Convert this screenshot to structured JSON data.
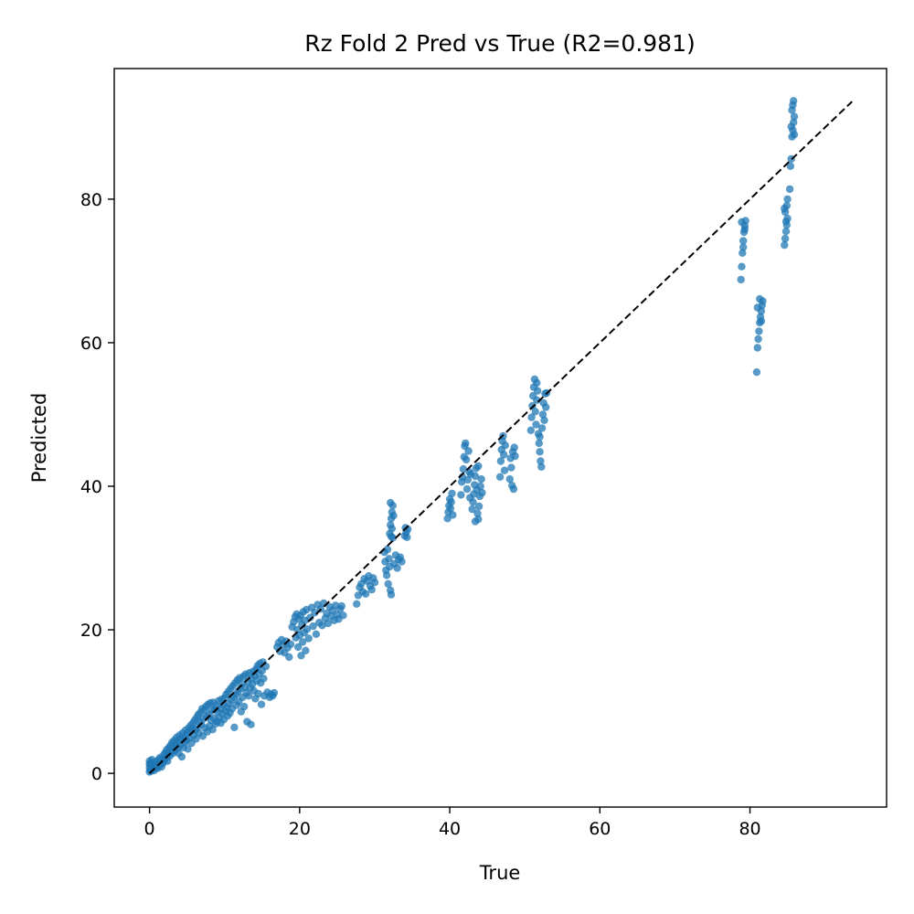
{
  "chart_data": {
    "type": "scatter",
    "title": "Rz Fold 2 Pred vs True (R2=0.981)",
    "xlabel": "True",
    "ylabel": "Predicted",
    "xlim": [
      -4.7,
      98.2
    ],
    "ylim": [
      -4.7,
      98.2
    ],
    "xticks": [
      0,
      20,
      40,
      60,
      80
    ],
    "yticks": [
      0,
      20,
      40,
      60,
      80
    ],
    "grid": false,
    "legend": "none",
    "point_color": "#1f77b4",
    "reference_line": {
      "style": "dashed",
      "color": "#000000",
      "from": [
        0,
        0
      ],
      "to": [
        93.6,
        93.6
      ]
    },
    "points": [
      [
        0,
        0.2
      ],
      [
        0,
        0.8
      ],
      [
        0,
        1.3
      ],
      [
        0,
        1.7
      ],
      [
        0.1,
        0.5
      ],
      [
        0.1,
        1.1
      ],
      [
        0.2,
        0.3
      ],
      [
        0.2,
        1.5
      ],
      [
        0.3,
        0.9
      ],
      [
        0.3,
        1.9
      ],
      [
        0.4,
        0.6
      ],
      [
        0.5,
        1.2
      ],
      [
        0.6,
        0.4
      ],
      [
        0.7,
        1.0
      ],
      [
        0.8,
        1.6
      ],
      [
        0.9,
        0.8
      ],
      [
        1.0,
        1.3
      ],
      [
        1.1,
        0.7
      ],
      [
        1.2,
        1.9
      ],
      [
        1.3,
        1.1
      ],
      [
        1.4,
        2.2
      ],
      [
        1.5,
        1.5
      ],
      [
        1.6,
        0.9
      ],
      [
        1.7,
        2.0
      ],
      [
        1.8,
        1.4
      ],
      [
        1.9,
        2.6
      ],
      [
        2.0,
        1.8
      ],
      [
        2.1,
        2.9
      ],
      [
        2.2,
        2.2
      ],
      [
        2.3,
        3.3
      ],
      [
        2.4,
        1.7
      ],
      [
        2.5,
        2.6
      ],
      [
        2.6,
        3.6
      ],
      [
        2.7,
        2.4
      ],
      [
        2.8,
        3.9
      ],
      [
        2.9,
        3.0
      ],
      [
        3.0,
        4.3
      ],
      [
        3.1,
        2.8
      ],
      [
        3.2,
        3.6
      ],
      [
        3.3,
        4.6
      ],
      [
        3.4,
        3.2
      ],
      [
        3.5,
        4.1
      ],
      [
        3.6,
        5.0
      ],
      [
        3.7,
        3.5
      ],
      [
        3.8,
        4.4
      ],
      [
        3.9,
        2.8
      ],
      [
        4.0,
        5.3
      ],
      [
        4.1,
        3.9
      ],
      [
        4.2,
        4.8
      ],
      [
        4.3,
        2.3
      ],
      [
        4.4,
        5.6
      ],
      [
        4.5,
        3.6
      ],
      [
        4.6,
        5.0
      ],
      [
        4.7,
        4.3
      ],
      [
        4.8,
        6.0
      ],
      [
        4.9,
        4.6
      ],
      [
        5.0,
        5.5
      ],
      [
        5.1,
        3.4
      ],
      [
        5.2,
        6.3
      ],
      [
        5.3,
        4.9
      ],
      [
        5.4,
        5.8
      ],
      [
        5.5,
        6.7
      ],
      [
        5.6,
        4.2
      ],
      [
        5.7,
        6.1
      ],
      [
        5.8,
        7.0
      ],
      [
        5.9,
        5.3
      ],
      [
        6.0,
        7.4
      ],
      [
        6.1,
        6.0
      ],
      [
        6.2,
        4.8
      ],
      [
        6.3,
        7.8
      ],
      [
        6.4,
        6.4
      ],
      [
        6.5,
        8.2
      ],
      [
        6.6,
        5.6
      ],
      [
        6.7,
        7.2
      ],
      [
        6.8,
        8.5
      ],
      [
        6.9,
        6.8
      ],
      [
        7.0,
        9.0
      ],
      [
        7.1,
        5.2
      ],
      [
        7.2,
        7.6
      ],
      [
        7.3,
        8.8
      ],
      [
        7.4,
        6.3
      ],
      [
        7.5,
        9.3
      ],
      [
        7.6,
        7.9
      ],
      [
        7.7,
        5.8
      ],
      [
        7.8,
        9.6
      ],
      [
        7.9,
        8.2
      ],
      [
        8.0,
        6.6
      ],
      [
        8.1,
        9.8
      ],
      [
        8.2,
        7.4
      ],
      [
        8.3,
        8.8
      ],
      [
        8.4,
        6.1
      ],
      [
        8.5,
        9.9
      ],
      [
        8.6,
        7.7
      ],
      [
        8.7,
        8.9
      ],
      [
        8.8,
        6.9
      ],
      [
        8.9,
        9.4
      ],
      [
        9.0,
        7.2
      ],
      [
        9.1,
        8.6
      ],
      [
        9.2,
        10.1
      ],
      [
        9.3,
        7.8
      ],
      [
        9.4,
        9.0
      ],
      [
        9.5,
        7.0
      ],
      [
        9.6,
        10.3
      ],
      [
        9.7,
        8.3
      ],
      [
        9.8,
        9.6
      ],
      [
        9.9,
        7.5
      ],
      [
        10.0,
        10.5
      ],
      [
        10.1,
        8.7
      ],
      [
        10.2,
        11.0
      ],
      [
        10.3,
        9.2
      ],
      [
        10.4,
        8.0
      ],
      [
        10.5,
        11.4
      ],
      [
        10.6,
        9.7
      ],
      [
        10.7,
        8.4
      ],
      [
        10.8,
        11.8
      ],
      [
        10.9,
        10.2
      ],
      [
        11.0,
        9.0
      ],
      [
        11.1,
        12.2
      ],
      [
        11.2,
        10.6
      ],
      [
        11.3,
        6.4
      ],
      [
        11.4,
        12.6
      ],
      [
        11.5,
        11.0
      ],
      [
        11.6,
        9.5
      ],
      [
        11.7,
        13.0
      ],
      [
        11.8,
        11.4
      ],
      [
        11.9,
        10.0
      ],
      [
        12.0,
        13.3
      ],
      [
        12.1,
        11.8
      ],
      [
        12.2,
        8.6
      ],
      [
        12.3,
        12.5
      ],
      [
        12.4,
        10.6
      ],
      [
        12.5,
        13.5
      ],
      [
        12.6,
        9.3
      ],
      [
        12.7,
        12.0
      ],
      [
        12.8,
        13.8
      ],
      [
        12.9,
        11.2
      ],
      [
        13.0,
        7.2
      ],
      [
        13.1,
        12.8
      ],
      [
        13.2,
        10.8
      ],
      [
        13.3,
        14.0
      ],
      [
        13.4,
        11.9
      ],
      [
        13.5,
        6.8
      ],
      [
        13.6,
        13.2
      ],
      [
        13.7,
        12.4
      ],
      [
        13.8,
        14.2
      ],
      [
        13.9,
        11.5
      ],
      [
        14.0,
        13.6
      ],
      [
        14.1,
        10.4
      ],
      [
        14.2,
        14.5
      ],
      [
        14.3,
        12.9
      ],
      [
        14.4,
        15.0
      ],
      [
        14.5,
        11.1
      ],
      [
        14.6,
        13.8
      ],
      [
        14.7,
        15.3
      ],
      [
        14.8,
        12.6
      ],
      [
        14.9,
        9.6
      ],
      [
        15.0,
        14.3
      ],
      [
        15.1,
        15.5
      ],
      [
        15.2,
        13.2
      ],
      [
        15.3,
        10.8
      ],
      [
        15.5,
        14.9
      ],
      [
        15.7,
        11.3
      ],
      [
        16.0,
        10.6
      ],
      [
        16.2,
        11.0
      ],
      [
        16.4,
        10.8
      ],
      [
        16.6,
        11.2
      ],
      [
        17.0,
        17.6
      ],
      [
        17.2,
        18.2
      ],
      [
        17.4,
        17.0
      ],
      [
        17.6,
        18.6
      ],
      [
        17.8,
        17.9
      ],
      [
        18.0,
        16.8
      ],
      [
        18.2,
        18.4
      ],
      [
        18.4,
        17.5
      ],
      [
        18.6,
        16.2
      ],
      [
        18.8,
        18.0
      ],
      [
        19.0,
        20.4
      ],
      [
        19.2,
        21.1
      ],
      [
        19.4,
        21.8
      ],
      [
        19.5,
        18.9
      ],
      [
        19.6,
        22.2
      ],
      [
        19.7,
        20.0
      ],
      [
        19.8,
        17.6
      ],
      [
        19.9,
        21.5
      ],
      [
        20.0,
        19.2
      ],
      [
        20.1,
        22.0
      ],
      [
        20.2,
        16.4
      ],
      [
        20.3,
        20.7
      ],
      [
        20.4,
        18.3
      ],
      [
        20.5,
        22.5
      ],
      [
        20.6,
        19.6
      ],
      [
        20.7,
        21.3
      ],
      [
        20.8,
        17.1
      ],
      [
        20.9,
        22.8
      ],
      [
        21.0,
        20.1
      ],
      [
        21.2,
        18.8
      ],
      [
        21.4,
        21.7
      ],
      [
        21.6,
        23.1
      ],
      [
        21.8,
        20.5
      ],
      [
        22.0,
        22.4
      ],
      [
        22.2,
        19.4
      ],
      [
        22.4,
        23.5
      ],
      [
        22.6,
        21.0
      ],
      [
        22.8,
        22.9
      ],
      [
        23.0,
        20.6
      ],
      [
        23.2,
        23.7
      ],
      [
        23.4,
        21.6
      ],
      [
        23.6,
        22.3
      ],
      [
        23.8,
        20.9
      ],
      [
        24.0,
        23.2
      ],
      [
        24.2,
        21.9
      ],
      [
        24.4,
        22.7
      ],
      [
        24.6,
        21.3
      ],
      [
        24.8,
        23.4
      ],
      [
        25.0,
        22.1
      ],
      [
        25.2,
        21.5
      ],
      [
        25.4,
        22.9
      ],
      [
        25.6,
        23.3
      ],
      [
        25.8,
        22.0
      ],
      [
        27.6,
        23.6
      ],
      [
        27.8,
        24.8
      ],
      [
        28.0,
        25.9
      ],
      [
        28.2,
        26.4
      ],
      [
        28.4,
        25.3
      ],
      [
        28.6,
        27.1
      ],
      [
        28.8,
        25.0
      ],
      [
        29.0,
        26.8
      ],
      [
        29.2,
        27.5
      ],
      [
        29.4,
        26.1
      ],
      [
        29.6,
        25.6
      ],
      [
        29.8,
        27.2
      ],
      [
        30.0,
        26.6
      ],
      [
        31.3,
        30.8
      ],
      [
        31.4,
        29.5
      ],
      [
        31.5,
        28.3
      ],
      [
        31.6,
        27.6
      ],
      [
        31.7,
        31.2
      ],
      [
        31.8,
        26.4
      ],
      [
        31.9,
        29.9
      ],
      [
        32.0,
        28.8
      ],
      [
        32.1,
        25.5
      ],
      [
        32.2,
        24.9
      ],
      [
        32.0,
        33.4
      ],
      [
        32.1,
        34.6
      ],
      [
        32.2,
        35.5
      ],
      [
        32.3,
        36.4
      ],
      [
        32.4,
        37.3
      ],
      [
        32.1,
        37.7
      ],
      [
        32.3,
        34.1
      ],
      [
        32.4,
        32.8
      ],
      [
        32.5,
        35.9
      ],
      [
        32.2,
        33.0
      ],
      [
        32.6,
        29.2
      ],
      [
        32.8,
        30.4
      ],
      [
        33.0,
        28.6
      ],
      [
        33.2,
        29.8
      ],
      [
        33.4,
        30.1
      ],
      [
        33.6,
        29.5
      ],
      [
        34.0,
        33.1
      ],
      [
        34.1,
        34.2
      ],
      [
        34.2,
        33.6
      ],
      [
        34.3,
        32.9
      ],
      [
        34.4,
        34.0
      ],
      [
        39.7,
        35.5
      ],
      [
        39.8,
        36.4
      ],
      [
        39.9,
        37.3
      ],
      [
        40.0,
        38.2
      ],
      [
        40.1,
        36.9
      ],
      [
        40.2,
        37.8
      ],
      [
        40.3,
        39.0
      ],
      [
        40.4,
        36.0
      ],
      [
        41.5,
        38.8
      ],
      [
        41.6,
        40.6
      ],
      [
        41.7,
        41.3
      ],
      [
        41.8,
        42.4
      ],
      [
        41.9,
        44.1
      ],
      [
        42.0,
        45.6
      ],
      [
        42.1,
        46.0
      ],
      [
        42.2,
        43.7
      ],
      [
        42.3,
        39.6
      ],
      [
        42.4,
        40.9
      ],
      [
        42.5,
        44.9
      ],
      [
        42.6,
        42.0
      ],
      [
        42.7,
        38.4
      ],
      [
        42.8,
        41.7
      ],
      [
        43.0,
        36.8
      ],
      [
        43.1,
        37.8
      ],
      [
        43.2,
        38.9
      ],
      [
        43.3,
        40.2
      ],
      [
        43.4,
        41.4
      ],
      [
        43.5,
        42.5
      ],
      [
        43.6,
        39.5
      ],
      [
        43.7,
        36.2
      ],
      [
        43.8,
        35.4
      ],
      [
        43.9,
        37.2
      ],
      [
        44.0,
        38.6
      ],
      [
        44.1,
        40.0
      ],
      [
        44.2,
        41.0
      ],
      [
        44.3,
        39.1
      ],
      [
        43.4,
        35.1
      ],
      [
        43.8,
        42.8
      ],
      [
        46.7,
        41.3
      ],
      [
        46.8,
        43.5
      ],
      [
        46.9,
        45.1
      ],
      [
        47.0,
        46.3
      ],
      [
        47.1,
        47.0
      ],
      [
        47.2,
        44.4
      ],
      [
        47.3,
        42.2
      ],
      [
        47.4,
        45.7
      ],
      [
        48.0,
        41.0
      ],
      [
        48.2,
        42.6
      ],
      [
        48.4,
        44.8
      ],
      [
        48.6,
        45.4
      ],
      [
        48.1,
        43.9
      ],
      [
        48.3,
        40.1
      ],
      [
        48.5,
        39.6
      ],
      [
        48.7,
        44.2
      ],
      [
        50.8,
        47.8
      ],
      [
        50.9,
        49.6
      ],
      [
        51.0,
        51.2
      ],
      [
        51.1,
        52.6
      ],
      [
        51.2,
        53.8
      ],
      [
        51.3,
        54.9
      ],
      [
        51.4,
        50.4
      ],
      [
        51.5,
        48.6
      ],
      [
        51.6,
        52.0
      ],
      [
        51.7,
        53.3
      ],
      [
        51.8,
        47.3
      ],
      [
        51.9,
        46.0
      ],
      [
        52.0,
        44.8
      ],
      [
        52.1,
        43.5
      ],
      [
        52.2,
        42.7
      ],
      [
        52.3,
        48.1
      ],
      [
        52.4,
        50.0
      ],
      [
        52.5,
        51.6
      ],
      [
        52.6,
        49.2
      ],
      [
        52.7,
        52.9
      ],
      [
        52.8,
        51.0
      ],
      [
        52.9,
        53.0
      ],
      [
        51.6,
        54.4
      ],
      [
        52.0,
        46.9
      ],
      [
        78.8,
        68.8
      ],
      [
        78.9,
        70.6
      ],
      [
        79.0,
        72.5
      ],
      [
        79.1,
        74.2
      ],
      [
        79.2,
        75.4
      ],
      [
        79.3,
        76.3
      ],
      [
        79.4,
        77.0
      ],
      [
        79.1,
        73.3
      ],
      [
        79.3,
        75.8
      ],
      [
        78.9,
        76.8
      ],
      [
        80.9,
        55.9
      ],
      [
        81.0,
        59.3
      ],
      [
        81.1,
        60.5
      ],
      [
        81.2,
        61.6
      ],
      [
        81.3,
        62.8
      ],
      [
        81.4,
        63.6
      ],
      [
        81.5,
        64.4
      ],
      [
        81.6,
        65.2
      ],
      [
        81.7,
        65.8
      ],
      [
        81.3,
        66.1
      ],
      [
        81.0,
        64.9
      ],
      [
        81.5,
        63.0
      ],
      [
        84.6,
        73.6
      ],
      [
        84.7,
        74.5
      ],
      [
        84.8,
        75.5
      ],
      [
        84.9,
        76.4
      ],
      [
        85.0,
        77.3
      ],
      [
        84.7,
        78.2
      ],
      [
        84.9,
        79.1
      ],
      [
        85.0,
        80.0
      ],
      [
        84.8,
        76.9
      ],
      [
        84.6,
        78.7
      ],
      [
        85.3,
        81.4
      ],
      [
        85.4,
        84.6
      ],
      [
        85.5,
        85.6
      ],
      [
        85.6,
        88.7
      ],
      [
        85.7,
        89.6
      ],
      [
        85.8,
        90.7
      ],
      [
        85.9,
        91.5
      ],
      [
        85.6,
        92.4
      ],
      [
        85.7,
        93.1
      ],
      [
        85.8,
        93.7
      ],
      [
        85.5,
        90.1
      ],
      [
        85.9,
        89.0
      ]
    ]
  }
}
